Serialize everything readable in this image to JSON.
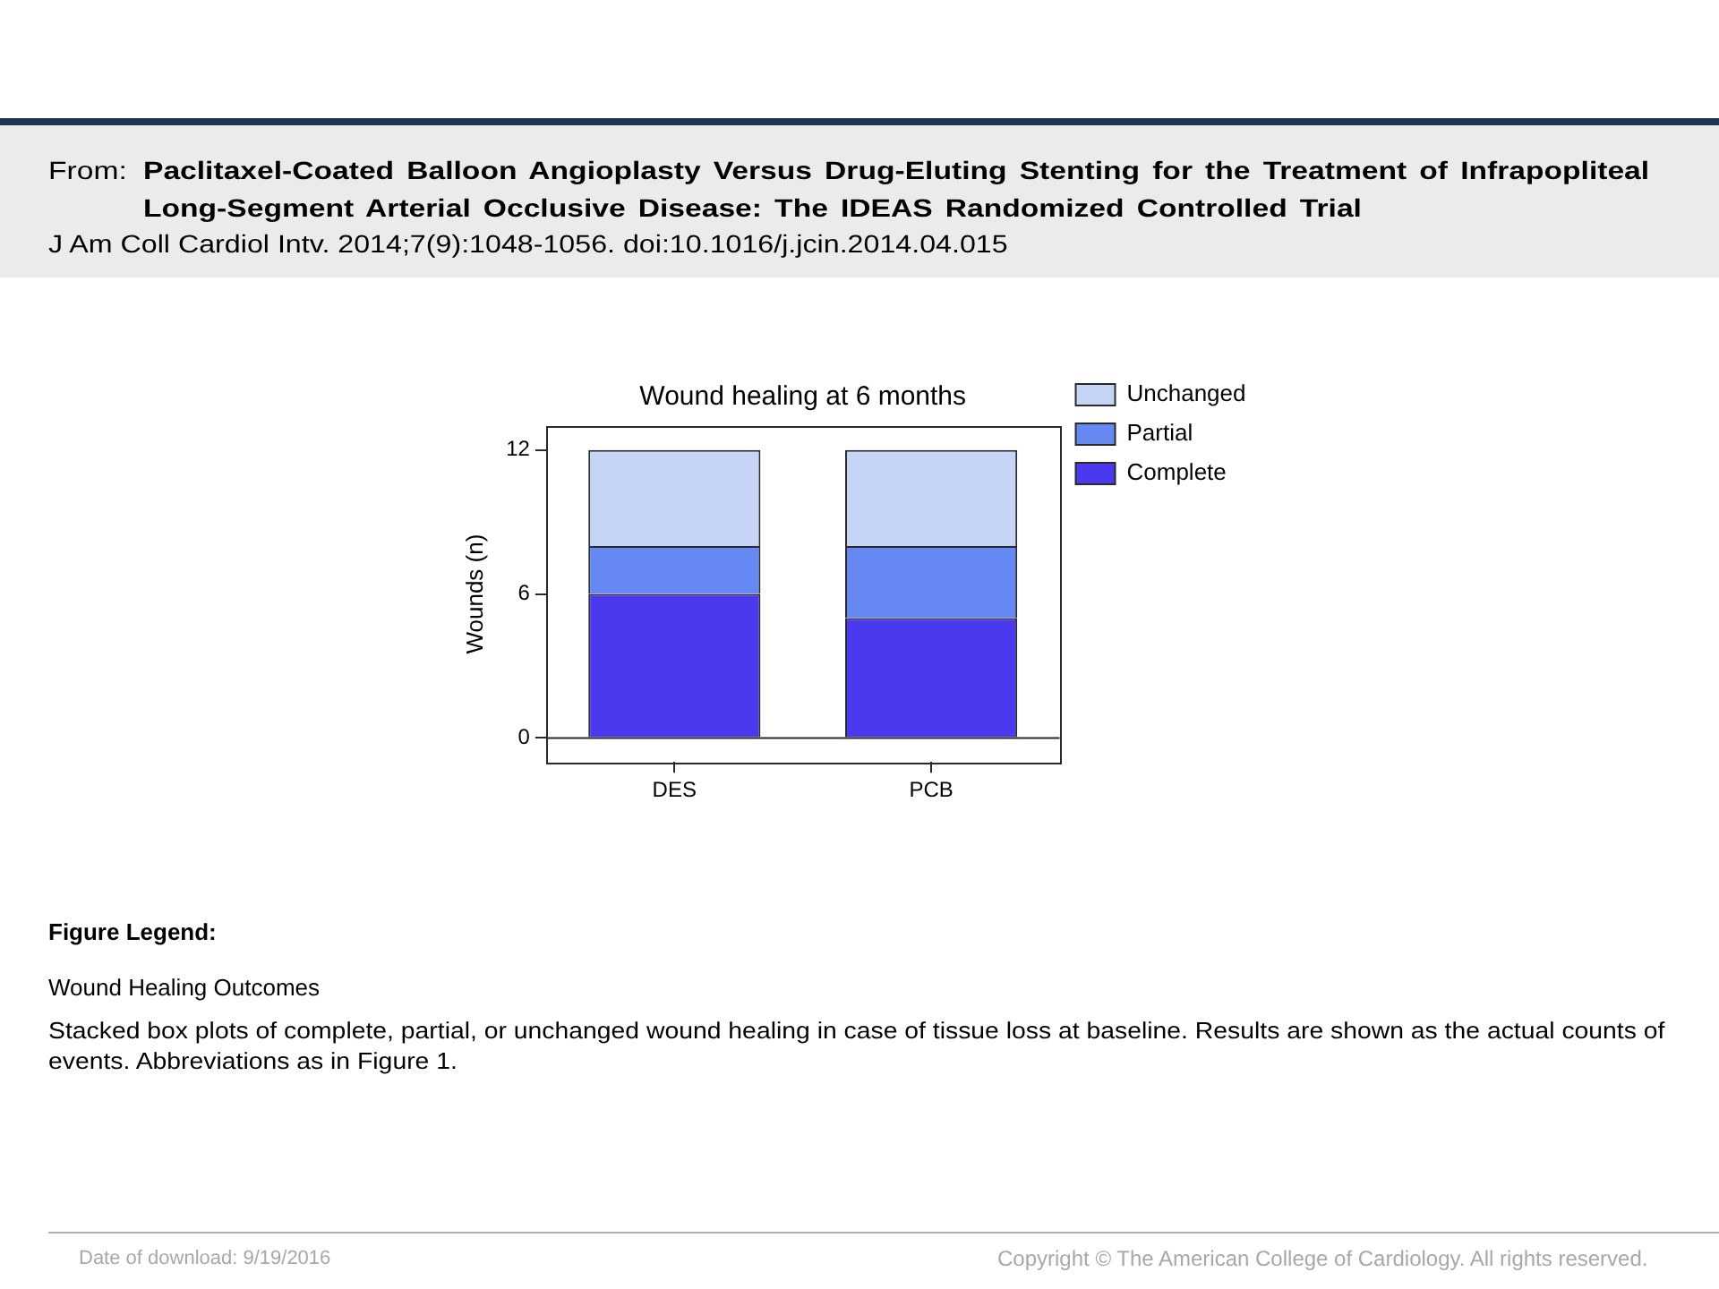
{
  "chart_data": {
    "type": "bar",
    "title": "Wound healing at 6 months",
    "ylabel": "Wounds (n)",
    "categories": [
      "DES",
      "PCB"
    ],
    "series": [
      {
        "name": "Complete",
        "color": "#4b39f0",
        "values": [
          6,
          5
        ]
      },
      {
        "name": "Partial",
        "color": "#6688f2",
        "values": [
          2,
          3
        ]
      },
      {
        "name": "Unchanged",
        "color": "#c6d4f5",
        "values": [
          4,
          4
        ]
      }
    ],
    "stacked": true,
    "ylim": [
      -1,
      13
    ],
    "yticks": [
      0,
      6,
      12
    ],
    "grid": false,
    "legend": "top right",
    "ref_lines": [
      {
        "axis": "y",
        "value": 0
      }
    ],
    "annotations": [
      "From:",
      "Paclitaxel-Coated Balloon Angioplasty Versus Drug-Eluting Stenting for the Treatment of Infrapopliteal Long-Segment Arterial Occlusive Disease: The IDEAS Randomized Controlled Trial",
      "J Am Coll Cardiol Intv. 2014;7(9):1048-1056. doi:10.1016/j.jcin.2014.04.015",
      "Figure Legend:",
      "Wound Healing Outcomes",
      "Stacked box plots of complete, partial, or unchanged wound healing in case of tissue loss at baseline. Results are shown as the actual counts of events. Abbreviations as in Figure 1.",
      "Date of download: 9/19/2016",
      "Copyright © The American College of Cardiology. All rights reserved."
    ]
  }
}
